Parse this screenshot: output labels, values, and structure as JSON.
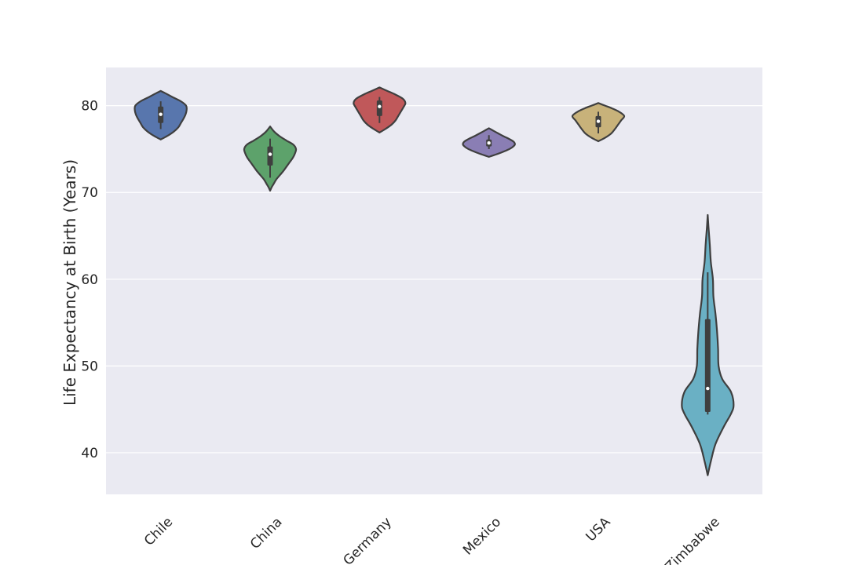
{
  "chart_data": {
    "type": "violin",
    "title": "",
    "xlabel": "",
    "ylabel": "Life Expectancy at Birth (Years)",
    "ylim": [
      35.2,
      84.4
    ],
    "yticks": [
      40,
      50,
      60,
      70,
      80
    ],
    "grid": true,
    "legend": "none",
    "categories": [
      "Chile",
      "China",
      "Germany",
      "Mexico",
      "USA",
      "Zimbabwe"
    ],
    "series": [
      {
        "category": "Chile",
        "color": "#5876ad",
        "min": 76.1,
        "max": 81.7,
        "q1": 78.0,
        "median": 79.0,
        "q3": 79.9,
        "whisker_low": 77.3,
        "whisker_high": 80.5,
        "density": [
          [
            76.1,
            0.0
          ],
          [
            76.5,
            0.25
          ],
          [
            77.0,
            0.5
          ],
          [
            77.5,
            0.68
          ],
          [
            78.0,
            0.78
          ],
          [
            78.5,
            0.88
          ],
          [
            79.0,
            0.96
          ],
          [
            79.5,
            1.0
          ],
          [
            80.0,
            0.98
          ],
          [
            80.5,
            0.78
          ],
          [
            81.0,
            0.45
          ],
          [
            81.4,
            0.2
          ],
          [
            81.7,
            0.0
          ]
        ]
      },
      {
        "category": "China",
        "color": "#5da26b",
        "min": 70.2,
        "max": 77.6,
        "q1": 73.1,
        "median": 74.4,
        "q3": 75.3,
        "whisker_low": 71.7,
        "whisker_high": 76.2,
        "density": [
          [
            70.2,
            0.0
          ],
          [
            70.6,
            0.06
          ],
          [
            71.0,
            0.14
          ],
          [
            71.5,
            0.24
          ],
          [
            72.0,
            0.38
          ],
          [
            72.5,
            0.52
          ],
          [
            73.0,
            0.64
          ],
          [
            73.5,
            0.76
          ],
          [
            74.0,
            0.88
          ],
          [
            74.5,
            0.96
          ],
          [
            75.0,
            1.0
          ],
          [
            75.5,
            0.9
          ],
          [
            76.0,
            0.62
          ],
          [
            76.5,
            0.36
          ],
          [
            77.0,
            0.16
          ],
          [
            77.6,
            0.0
          ]
        ]
      },
      {
        "category": "Germany",
        "color": "#c0585a",
        "min": 76.9,
        "max": 82.1,
        "q1": 78.8,
        "median": 79.9,
        "q3": 80.6,
        "whisker_low": 78.0,
        "whisker_high": 81.0,
        "density": [
          [
            76.9,
            0.0
          ],
          [
            77.3,
            0.22
          ],
          [
            77.8,
            0.46
          ],
          [
            78.3,
            0.62
          ],
          [
            78.8,
            0.72
          ],
          [
            79.3,
            0.82
          ],
          [
            79.8,
            0.92
          ],
          [
            80.3,
            1.0
          ],
          [
            80.8,
            0.9
          ],
          [
            81.3,
            0.6
          ],
          [
            81.7,
            0.3
          ],
          [
            82.1,
            0.0
          ]
        ]
      },
      {
        "category": "Mexico",
        "color": "#8a7eb4",
        "min": 74.1,
        "max": 77.4,
        "q1": 75.3,
        "median": 75.7,
        "q3": 76.1,
        "whisker_low": 75.0,
        "whisker_high": 76.6,
        "density": [
          [
            74.1,
            0.0
          ],
          [
            74.3,
            0.2
          ],
          [
            74.6,
            0.48
          ],
          [
            74.9,
            0.72
          ],
          [
            75.2,
            0.9
          ],
          [
            75.5,
            1.0
          ],
          [
            75.8,
            0.97
          ],
          [
            76.1,
            0.82
          ],
          [
            76.5,
            0.55
          ],
          [
            76.9,
            0.3
          ],
          [
            77.2,
            0.12
          ],
          [
            77.4,
            0.0
          ]
        ]
      },
      {
        "category": "USA",
        "color": "#c8b27a",
        "min": 75.9,
        "max": 80.3,
        "q1": 77.5,
        "median": 78.2,
        "q3": 78.8,
        "whisker_low": 76.8,
        "whisker_high": 79.3,
        "density": [
          [
            75.9,
            0.0
          ],
          [
            76.3,
            0.26
          ],
          [
            76.8,
            0.5
          ],
          [
            77.3,
            0.64
          ],
          [
            77.8,
            0.76
          ],
          [
            78.3,
            0.88
          ],
          [
            78.8,
            1.0
          ],
          [
            79.3,
            0.8
          ],
          [
            79.7,
            0.52
          ],
          [
            80.0,
            0.26
          ],
          [
            80.3,
            0.0
          ]
        ]
      },
      {
        "category": "Zimbabwe",
        "color": "#6ab0c4",
        "min": 37.4,
        "max": 67.4,
        "q1": 44.7,
        "median": 47.4,
        "q3": 55.4,
        "whisker_low": 44.4,
        "whisker_high": 60.8,
        "density": [
          [
            37.4,
            0.0
          ],
          [
            39.0,
            0.12
          ],
          [
            41.0,
            0.3
          ],
          [
            43.0,
            0.62
          ],
          [
            44.5,
            0.9
          ],
          [
            45.5,
            1.0
          ],
          [
            47.0,
            0.9
          ],
          [
            48.5,
            0.56
          ],
          [
            50.0,
            0.42
          ],
          [
            52.0,
            0.4
          ],
          [
            54.0,
            0.36
          ],
          [
            56.0,
            0.3
          ],
          [
            58.0,
            0.22
          ],
          [
            60.0,
            0.2
          ],
          [
            62.0,
            0.12
          ],
          [
            64.0,
            0.08
          ],
          [
            66.0,
            0.03
          ],
          [
            67.4,
            0.0
          ]
        ]
      }
    ]
  },
  "style": {
    "page_background": "#ffffff",
    "plot_background": "#eaeaf2",
    "grid_color": "#ffffff",
    "outline_color": "#3f3f3f",
    "text_color": "#262626"
  }
}
